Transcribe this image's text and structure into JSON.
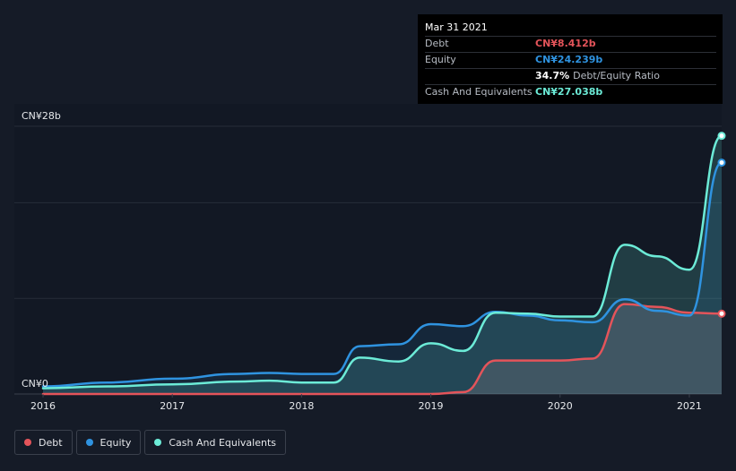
{
  "tooltip": {
    "date": "Mar 31 2021",
    "rows": [
      {
        "label": "Debt",
        "value": "CN¥8.412b",
        "color": "#e4545a"
      },
      {
        "label": "Equity",
        "value": "CN¥24.239b",
        "color": "#2f93e0"
      },
      {
        "label": "",
        "value": "34.7%",
        "note": "Debt/Equity Ratio"
      },
      {
        "label": "Cash And Equivalents",
        "value": "CN¥27.038b",
        "color": "#6cebd7"
      }
    ]
  },
  "legend": [
    {
      "label": "Debt",
      "color": "#e4545a"
    },
    {
      "label": "Equity",
      "color": "#2f93e0"
    },
    {
      "label": "Cash And Equivalents",
      "color": "#6cebd7"
    }
  ],
  "chart_data": {
    "type": "area",
    "y_unit": "CN¥ billions",
    "ylim": [
      0,
      28
    ],
    "xlim": [
      2016.0,
      2021.25
    ],
    "y_tick_labels": [
      {
        "value": 28,
        "label": "CN¥28b"
      },
      {
        "value": 0,
        "label": "CN¥0"
      }
    ],
    "x_ticks": [
      2016,
      2017,
      2018,
      2019,
      2020,
      2021
    ],
    "x_tick_labels": [
      "2016",
      "2017",
      "2018",
      "2019",
      "2020",
      "2021"
    ],
    "gridlines_y": [
      0,
      10,
      20,
      28
    ],
    "series": [
      {
        "name": "Cash And Equivalents",
        "color": "#6cebd7",
        "points": [
          [
            2016.0,
            0.6
          ],
          [
            2016.5,
            0.8
          ],
          [
            2017.0,
            1.0
          ],
          [
            2017.5,
            1.3
          ],
          [
            2017.75,
            1.4
          ],
          [
            2018.0,
            1.2
          ],
          [
            2018.25,
            1.2
          ],
          [
            2018.45,
            3.8
          ],
          [
            2018.75,
            3.4
          ],
          [
            2019.0,
            5.3
          ],
          [
            2019.25,
            4.5
          ],
          [
            2019.5,
            8.5
          ],
          [
            2019.75,
            8.4
          ],
          [
            2020.0,
            8.1
          ],
          [
            2020.25,
            8.1
          ],
          [
            2020.5,
            15.6
          ],
          [
            2020.75,
            14.4
          ],
          [
            2021.0,
            13.0
          ],
          [
            2021.25,
            27.0
          ]
        ]
      },
      {
        "name": "Equity",
        "color": "#2f93e0",
        "points": [
          [
            2016.0,
            0.8
          ],
          [
            2016.5,
            1.2
          ],
          [
            2017.0,
            1.6
          ],
          [
            2017.5,
            2.1
          ],
          [
            2017.75,
            2.2
          ],
          [
            2018.0,
            2.1
          ],
          [
            2018.25,
            2.1
          ],
          [
            2018.45,
            5.0
          ],
          [
            2018.75,
            5.2
          ],
          [
            2019.0,
            7.3
          ],
          [
            2019.25,
            7.1
          ],
          [
            2019.5,
            8.6
          ],
          [
            2019.75,
            8.2
          ],
          [
            2020.0,
            7.7
          ],
          [
            2020.25,
            7.5
          ],
          [
            2020.5,
            9.9
          ],
          [
            2020.75,
            8.7
          ],
          [
            2021.0,
            8.2
          ],
          [
            2021.25,
            24.2
          ]
        ]
      },
      {
        "name": "Debt",
        "color": "#e4545a",
        "points": [
          [
            2016.0,
            0.0
          ],
          [
            2017.0,
            0.0
          ],
          [
            2018.0,
            0.0
          ],
          [
            2019.0,
            0.0
          ],
          [
            2019.25,
            0.2
          ],
          [
            2019.5,
            3.5
          ],
          [
            2019.75,
            3.5
          ],
          [
            2020.0,
            3.5
          ],
          [
            2020.25,
            3.7
          ],
          [
            2020.5,
            9.4
          ],
          [
            2020.75,
            9.1
          ],
          [
            2021.0,
            8.5
          ],
          [
            2021.25,
            8.4
          ]
        ]
      }
    ]
  }
}
